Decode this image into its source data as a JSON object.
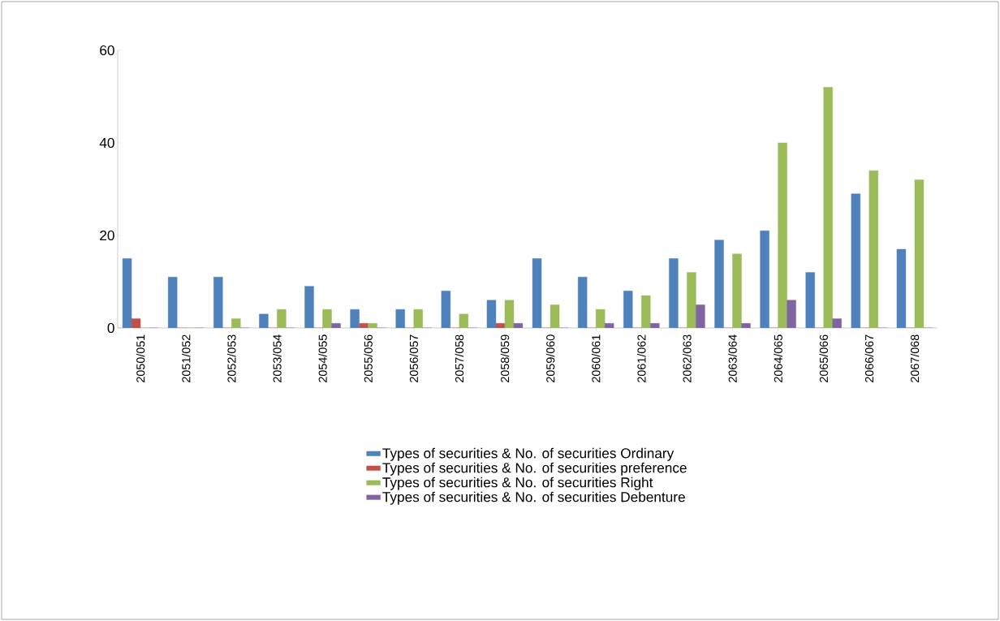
{
  "chart_data": {
    "type": "bar",
    "categories": [
      "2050/051",
      "2051/052",
      "2052/053",
      "2053/054",
      "2054/055",
      "2055/056",
      "2056/057",
      "2057/058",
      "2058/059",
      "2059/060",
      "2060/061",
      "2061/062",
      "2062/063",
      "2063/064",
      "2064/065",
      "2065/066",
      "2066/067",
      "2067/068"
    ],
    "series": [
      {
        "name": "Types of securities & No. of securities Ordinary",
        "color": "#4f81bd",
        "values": [
          15,
          11,
          11,
          3,
          9,
          4,
          4,
          8,
          6,
          15,
          11,
          8,
          15,
          19,
          21,
          12,
          29,
          17
        ]
      },
      {
        "name": "Types of securities & No. of securities preference",
        "color": "#c0504d",
        "values": [
          2,
          0,
          0,
          0,
          0,
          1,
          0,
          0,
          1,
          0,
          0,
          0,
          0,
          0,
          0,
          0,
          0,
          0
        ]
      },
      {
        "name": "Types of securities & No. of securities Right",
        "color": "#9bbb59",
        "values": [
          0,
          0,
          2,
          4,
          4,
          1,
          4,
          3,
          6,
          5,
          4,
          7,
          12,
          16,
          40,
          52,
          34,
          32
        ]
      },
      {
        "name": "Types of securities & No. of securities Debenture",
        "color": "#8064a2",
        "values": [
          0,
          0,
          0,
          0,
          1,
          0,
          0,
          0,
          1,
          0,
          1,
          1,
          5,
          1,
          6,
          2,
          0,
          0
        ]
      }
    ],
    "ylim": [
      0,
      60
    ],
    "yticks": [
      0,
      20,
      40,
      60
    ],
    "grid": false,
    "legend": "bottom"
  }
}
